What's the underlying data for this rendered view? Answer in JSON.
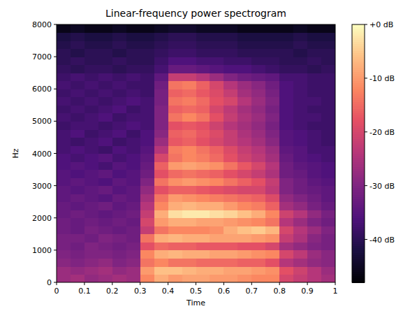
{
  "chart_data": {
    "type": "heatmap",
    "title": "Linear-frequency power spectrogram",
    "x_label": "Time",
    "y_label": "Hz",
    "xlim": [
      0,
      1
    ],
    "ylim": [
      0,
      8000
    ],
    "xticks": [
      0,
      0.1,
      0.2,
      0.3,
      0.4,
      0.5,
      0.6,
      0.7,
      0.8,
      0.9,
      1
    ],
    "yticks": [
      0,
      1000,
      2000,
      3000,
      4000,
      5000,
      6000,
      7000,
      8000
    ],
    "x_edges": [
      0,
      0.05,
      0.1,
      0.15,
      0.2,
      0.25,
      0.3,
      0.35,
      0.4,
      0.45,
      0.5,
      0.55,
      0.6,
      0.65,
      0.7,
      0.75,
      0.8,
      0.85,
      0.9,
      0.95,
      1
    ],
    "y_edges": [
      0,
      250,
      500,
      750,
      1000,
      1250,
      1500,
      1750,
      2000,
      2250,
      2500,
      2750,
      3000,
      3250,
      3500,
      3750,
      4000,
      4250,
      4500,
      4750,
      5000,
      5250,
      5500,
      5750,
      6000,
      6250,
      6500,
      6750,
      7000,
      7250,
      7500,
      7750,
      8000
    ],
    "cells": [
      [
        -27,
        -26,
        -28,
        -27,
        -26,
        -27,
        -12,
        -8,
        -10,
        -9,
        -9,
        -10,
        -10,
        -11,
        -12,
        -12,
        -20,
        -22,
        -24,
        -26
      ],
      [
        -27,
        -28,
        -27,
        -26,
        -28,
        -27,
        -10,
        -6,
        -6,
        -7,
        -8,
        -8,
        -9,
        -9,
        -10,
        -11,
        -18,
        -21,
        -24,
        -27
      ],
      [
        -29,
        -30,
        -29,
        -28,
        -30,
        -29,
        -14,
        -12,
        -14,
        -14,
        -15,
        -15,
        -15,
        -16,
        -16,
        -18,
        -24,
        -26,
        -28,
        -29
      ],
      [
        -30,
        -31,
        -30,
        -30,
        -31,
        -30,
        -12,
        -8,
        -7,
        -8,
        -8,
        -9,
        -9,
        -10,
        -11,
        -12,
        -20,
        -23,
        -27,
        -29
      ],
      [
        -31,
        -32,
        -30,
        -31,
        -32,
        -31,
        -18,
        -15,
        -16,
        -16,
        -17,
        -17,
        -17,
        -18,
        -18,
        -20,
        -26,
        -28,
        -30,
        -31
      ],
      [
        -31,
        -31,
        -32,
        -30,
        -31,
        -32,
        -14,
        -8,
        -7,
        -8,
        -8,
        -9,
        -9,
        -9,
        -10,
        -11,
        -22,
        -25,
        -29,
        -31
      ],
      [
        -32,
        -33,
        -31,
        -32,
        -33,
        -32,
        -22,
        -14,
        -12,
        -12,
        -12,
        -11,
        -8,
        -6,
        -5,
        -7,
        -20,
        -24,
        -27,
        -30
      ],
      [
        -32,
        -33,
        -32,
        -33,
        -32,
        -33,
        -20,
        -10,
        -8,
        -8,
        -9,
        -9,
        -10,
        -11,
        -12,
        -14,
        -24,
        -27,
        -30,
        -32
      ],
      [
        -33,
        -32,
        -33,
        -34,
        -33,
        -32,
        -22,
        -8,
        -3,
        -2,
        -2,
        -3,
        -4,
        -6,
        -8,
        -12,
        -21,
        -24,
        -28,
        -31
      ],
      [
        -33,
        -34,
        -33,
        -32,
        -34,
        -33,
        -24,
        -12,
        -8,
        -7,
        -8,
        -8,
        -10,
        -12,
        -13,
        -16,
        -26,
        -28,
        -31,
        -33
      ],
      [
        -34,
        -33,
        -34,
        -35,
        -33,
        -34,
        -26,
        -14,
        -10,
        -11,
        -12,
        -13,
        -14,
        -15,
        -16,
        -19,
        -28,
        -30,
        -32,
        -34
      ],
      [
        -34,
        -35,
        -34,
        -33,
        -35,
        -34,
        -28,
        -18,
        -16,
        -16,
        -17,
        -18,
        -19,
        -20,
        -20,
        -23,
        -30,
        -32,
        -33,
        -34
      ],
      [
        -35,
        -34,
        -35,
        -36,
        -34,
        -35,
        -30,
        -14,
        -11,
        -10,
        -11,
        -12,
        -14,
        -16,
        -18,
        -22,
        -30,
        -32,
        -34,
        -35
      ],
      [
        -35,
        -36,
        -35,
        -34,
        -36,
        -35,
        -32,
        -18,
        -15,
        -14,
        -15,
        -16,
        -18,
        -20,
        -22,
        -25,
        -32,
        -33,
        -35,
        -36
      ],
      [
        -36,
        -35,
        -36,
        -37,
        -35,
        -36,
        -33,
        -16,
        -10,
        -9,
        -10,
        -11,
        -14,
        -17,
        -20,
        -24,
        -32,
        -34,
        -35,
        -36
      ],
      [
        -36,
        -37,
        -36,
        -35,
        -37,
        -36,
        -34,
        -20,
        -14,
        -12,
        -13,
        -15,
        -18,
        -21,
        -23,
        -26,
        -33,
        -35,
        -36,
        -37
      ],
      [
        -37,
        -36,
        -37,
        -38,
        -36,
        -37,
        -35,
        -24,
        -13,
        -12,
        -14,
        -16,
        -19,
        -22,
        -24,
        -27,
        -34,
        -35,
        -37,
        -37
      ],
      [
        -37,
        -38,
        -37,
        -36,
        -38,
        -37,
        -36,
        -27,
        -17,
        -16,
        -18,
        -20,
        -22,
        -24,
        -26,
        -29,
        -35,
        -36,
        -37,
        -38
      ],
      [
        -37,
        -36,
        -38,
        -37,
        -36,
        -38,
        -36,
        -29,
        -16,
        -15,
        -17,
        -19,
        -22,
        -25,
        -27,
        -30,
        -35,
        -36,
        -37,
        -38
      ],
      [
        -38,
        -37,
        -37,
        -38,
        -37,
        -36,
        -37,
        -30,
        -18,
        -17,
        -18,
        -21,
        -24,
        -26,
        -28,
        -31,
        -36,
        -37,
        -38,
        -38
      ],
      [
        -37,
        -38,
        -37,
        -36,
        -38,
        -37,
        -37,
        -30,
        -14,
        -12,
        -14,
        -18,
        -22,
        -25,
        -27,
        -30,
        -36,
        -37,
        -37,
        -38
      ],
      [
        -38,
        -37,
        -38,
        -37,
        -36,
        -38,
        -37,
        -30,
        -16,
        -15,
        -16,
        -20,
        -23,
        -26,
        -28,
        -31,
        -36,
        -37,
        -38,
        -38
      ],
      [
        -37,
        -38,
        -37,
        -38,
        -37,
        -36,
        -37,
        -31,
        -14,
        -13,
        -15,
        -18,
        -20,
        -24,
        -27,
        -30,
        -36,
        -37,
        -37,
        -38
      ],
      [
        -38,
        -37,
        -38,
        -37,
        -38,
        -37,
        -38,
        -31,
        -16,
        -15,
        -17,
        -19,
        -22,
        -26,
        -28,
        -31,
        -36,
        -37,
        -38,
        -38
      ],
      [
        -37,
        -38,
        -37,
        -38,
        -37,
        -38,
        -38,
        -32,
        -14,
        -13,
        -16,
        -20,
        -24,
        -27,
        -29,
        -32,
        -36,
        -37,
        -38,
        -38
      ],
      [
        -38,
        -37,
        -38,
        -37,
        -38,
        -37,
        -38,
        -34,
        -22,
        -22,
        -24,
        -27,
        -30,
        -32,
        -33,
        -34,
        -37,
        -37,
        -38,
        -38
      ],
      [
        -39,
        -40,
        -39,
        -39,
        -40,
        -39,
        -39,
        -37,
        -33,
        -33,
        -34,
        -35,
        -36,
        -36,
        -37,
        -38,
        -39,
        -39,
        -40,
        -39
      ],
      [
        -40,
        -39,
        -40,
        -40,
        -39,
        -40,
        -40,
        -38,
        -36,
        -36,
        -37,
        -37,
        -38,
        -38,
        -39,
        -39,
        -40,
        -40,
        -39,
        -40
      ],
      [
        -40,
        -41,
        -40,
        -40,
        -41,
        -40,
        -40,
        -39,
        -38,
        -38,
        -39,
        -39,
        -39,
        -40,
        -40,
        -40,
        -40,
        -41,
        -40,
        -40
      ],
      [
        -41,
        -40,
        -41,
        -41,
        -40,
        -41,
        -41,
        -40,
        -39,
        -39,
        -40,
        -40,
        -40,
        -41,
        -41,
        -41,
        -41,
        -40,
        -41,
        -41
      ],
      [
        -42,
        -41,
        -42,
        -42,
        -41,
        -42,
        -42,
        -41,
        -40,
        -40,
        -41,
        -41,
        -41,
        -42,
        -42,
        -42,
        -42,
        -41,
        -42,
        -42
      ],
      [
        -46,
        -45,
        -46,
        -46,
        -45,
        -46,
        -46,
        -45,
        -44,
        -44,
        -45,
        -45,
        -45,
        -46,
        -46,
        -46,
        -46,
        -45,
        -46,
        -46
      ]
    ],
    "colorbar": {
      "range": [
        -48,
        0
      ],
      "ticks": [
        {
          "value": 0,
          "label": "+0 dB"
        },
        {
          "value": -10,
          "label": "-10 dB"
        },
        {
          "value": -20,
          "label": "-20 dB"
        },
        {
          "value": -30,
          "label": "-30 dB"
        },
        {
          "value": -40,
          "label": "-40 dB"
        }
      ]
    }
  }
}
